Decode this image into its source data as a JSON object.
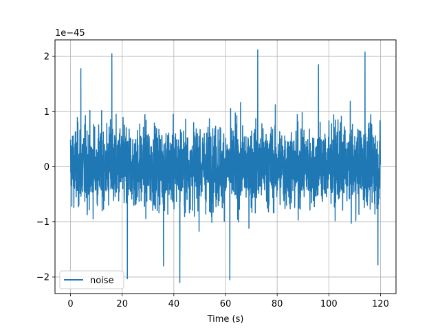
{
  "chart_data": {
    "type": "line",
    "title": "",
    "xlabel": "Time (s)",
    "ylabel": "",
    "offset_text": "1e−45",
    "xlim": [
      -6,
      126
    ],
    "ylim": [
      -2.3,
      2.3
    ],
    "x_ticks": [
      {
        "value": 0,
        "label": "0"
      },
      {
        "value": 20,
        "label": "20"
      },
      {
        "value": 40,
        "label": "40"
      },
      {
        "value": 60,
        "label": "60"
      },
      {
        "value": 80,
        "label": "80"
      },
      {
        "value": 100,
        "label": "100"
      },
      {
        "value": 120,
        "label": "120"
      }
    ],
    "y_ticks": [
      {
        "value": -2,
        "label": "−2"
      },
      {
        "value": -1,
        "label": "−1"
      },
      {
        "value": 0,
        "label": "0"
      },
      {
        "value": 1,
        "label": "1"
      },
      {
        "value": 2,
        "label": "2"
      }
    ],
    "grid": true,
    "legend_position": "lower-left",
    "series": [
      {
        "name": "noise",
        "color": "#1f77b4",
        "x_start": 0,
        "x_end": 120,
        "samples": 2400,
        "typical_amplitude": 0.95,
        "peaks": [
          {
            "x": 16,
            "y": 2.05
          },
          {
            "x": 72.5,
            "y": 2.12
          },
          {
            "x": 114,
            "y": 2.08
          },
          {
            "x": 42.3,
            "y": -2.1
          },
          {
            "x": 61.7,
            "y": -2.05
          },
          {
            "x": 22,
            "y": -2.03
          },
          {
            "x": 4,
            "y": 1.78
          },
          {
            "x": 36,
            "y": -1.8
          },
          {
            "x": 96,
            "y": 1.85
          },
          {
            "x": 119,
            "y": -1.78
          }
        ]
      }
    ]
  }
}
